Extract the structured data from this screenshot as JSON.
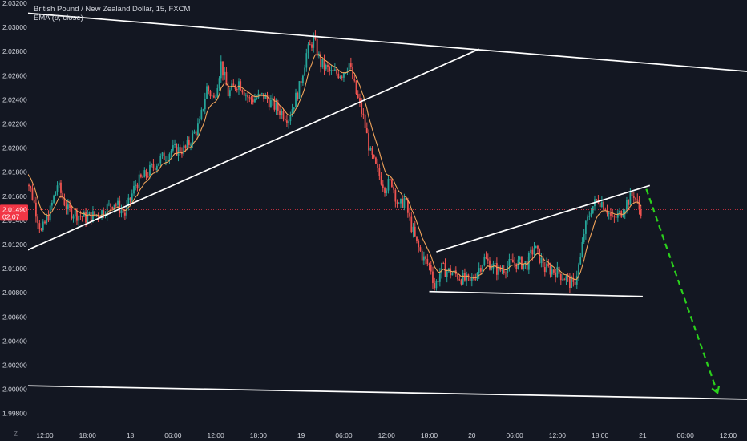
{
  "legend": {
    "symbol": "British Pound / New Zealand Dollar, 15, FXCM",
    "indicator": "EMA (9, close)"
  },
  "price_tag": {
    "price": "2.01490",
    "countdown": "02:07",
    "color": "#f23645"
  },
  "corner_label": "Z",
  "colors": {
    "background": "#131722",
    "up": "#26a69a",
    "down": "#ef5350",
    "ema": "#f0a35a",
    "trendline": "#ffffff",
    "forecast_arrow": "#2bd11c",
    "axis_text": "#d1d4dc"
  },
  "chart_data": {
    "type": "candlestick",
    "symbol": "GBPNZD",
    "timeframe": "15",
    "ylim": [
      1.9972,
      2.032
    ],
    "y_ticks": [
      "2.03200",
      "2.03000",
      "2.02800",
      "2.02600",
      "2.02400",
      "2.02200",
      "2.02000",
      "2.01800",
      "2.01600",
      "2.01400",
      "2.01200",
      "2.01000",
      "2.00800",
      "2.00600",
      "2.00400",
      "2.00200",
      "2.00000",
      "1.99800"
    ],
    "x_ticks": [
      "12:00",
      "18:00",
      "18",
      "06:00",
      "12:00",
      "18:00",
      "19",
      "06:00",
      "12:00",
      "18:00",
      "20",
      "06:00",
      "12:00",
      "18:00",
      "21",
      "06:00",
      "12:00"
    ],
    "x_tick_times": [
      "2025-11-17 12:00",
      "2025-11-17 18:00",
      "2025-11-18 00:00",
      "2025-11-18 06:00",
      "2025-11-18 12:00",
      "2025-11-18 18:00",
      "2025-11-19 00:00",
      "2025-11-19 06:00",
      "2025-11-19 12:00",
      "2025-11-19 18:00",
      "2025-11-20 00:00",
      "2025-11-20 06:00",
      "2025-11-20 12:00",
      "2025-11-20 18:00",
      "2025-11-21 00:00",
      "2025-11-21 06:00",
      "2025-11-21 12:00"
    ],
    "last_price": 2.0149,
    "close_path": [
      [
        "2025-11-17 09:00",
        2.0188
      ],
      [
        "2025-11-17 10:30",
        2.016
      ],
      [
        "2025-11-17 11:45",
        2.013
      ],
      [
        "2025-11-17 13:00",
        2.0148
      ],
      [
        "2025-11-17 14:00",
        2.017
      ],
      [
        "2025-11-17 15:30",
        2.0148
      ],
      [
        "2025-11-17 18:00",
        2.0142
      ],
      [
        "2025-11-17 20:00",
        2.0146
      ],
      [
        "2025-11-17 22:00",
        2.0155
      ],
      [
        "2025-11-17 23:30",
        2.0145
      ],
      [
        "2025-11-18 01:00",
        2.017
      ],
      [
        "2025-11-18 02:30",
        2.0178
      ],
      [
        "2025-11-18 04:00",
        2.0188
      ],
      [
        "2025-11-18 06:00",
        2.0198
      ],
      [
        "2025-11-18 08:00",
        2.0199
      ],
      [
        "2025-11-18 10:00",
        2.022
      ],
      [
        "2025-11-18 11:00",
        2.025
      ],
      [
        "2025-11-18 12:00",
        2.024
      ],
      [
        "2025-11-18 13:00",
        2.027
      ],
      [
        "2025-11-18 14:00",
        2.0245
      ],
      [
        "2025-11-18 15:30",
        2.0255
      ],
      [
        "2025-11-18 17:00",
        2.024
      ],
      [
        "2025-11-18 19:00",
        2.0243
      ],
      [
        "2025-11-18 21:00",
        2.0232
      ],
      [
        "2025-11-18 22:30",
        2.0225
      ],
      [
        "2025-11-19 00:00",
        2.025
      ],
      [
        "2025-11-19 01:00",
        2.0278
      ],
      [
        "2025-11-19 02:00",
        2.029
      ],
      [
        "2025-11-19 03:00",
        2.027
      ],
      [
        "2025-11-19 04:30",
        2.0262
      ],
      [
        "2025-11-19 06:00",
        2.0262
      ],
      [
        "2025-11-19 07:00",
        2.027
      ],
      [
        "2025-11-19 08:00",
        2.0245
      ],
      [
        "2025-11-19 09:00",
        2.0225
      ],
      [
        "2025-11-19 10:00",
        2.0195
      ],
      [
        "2025-11-19 11:00",
        2.018
      ],
      [
        "2025-11-19 12:00",
        2.0168
      ],
      [
        "2025-11-19 13:00",
        2.0172
      ],
      [
        "2025-11-19 14:00",
        2.015
      ],
      [
        "2025-11-19 14:45",
        2.0158
      ],
      [
        "2025-11-19 15:30",
        2.014
      ],
      [
        "2025-11-19 16:30",
        2.012
      ],
      [
        "2025-11-19 17:30",
        2.0108
      ],
      [
        "2025-11-19 18:30",
        2.01
      ],
      [
        "2025-11-19 19:00",
        2.0085
      ],
      [
        "2025-11-19 20:00",
        2.01
      ],
      [
        "2025-11-19 22:00",
        2.0095
      ],
      [
        "2025-11-20 00:00",
        2.0088
      ],
      [
        "2025-11-20 02:00",
        2.0108
      ],
      [
        "2025-11-20 04:00",
        2.0098
      ],
      [
        "2025-11-20 06:00",
        2.0105
      ],
      [
        "2025-11-20 08:00",
        2.0104
      ],
      [
        "2025-11-20 09:00",
        2.0118
      ],
      [
        "2025-11-20 10:30",
        2.01
      ],
      [
        "2025-11-20 12:00",
        2.0098
      ],
      [
        "2025-11-20 13:30",
        2.0092
      ],
      [
        "2025-11-20 14:30",
        2.0085
      ],
      [
        "2025-11-20 15:30",
        2.0108
      ],
      [
        "2025-11-20 16:00",
        2.013
      ],
      [
        "2025-11-20 17:00",
        2.015
      ],
      [
        "2025-11-20 18:00",
        2.0158
      ],
      [
        "2025-11-20 19:00",
        2.0152
      ],
      [
        "2025-11-20 20:00",
        2.014
      ],
      [
        "2025-11-20 21:00",
        2.0145
      ],
      [
        "2025-11-20 22:00",
        2.0155
      ],
      [
        "2025-11-20 23:00",
        2.0162
      ],
      [
        "2025-11-20 23:45",
        2.0149
      ]
    ],
    "trendlines": [
      {
        "from": [
          "2025-11-17 09:00",
          2.0312
        ],
        "to": [
          "2025-11-21 22:00",
          2.026
        ]
      },
      {
        "from": [
          "2025-11-17 09:00",
          2.0114
        ],
        "to": [
          "2025-11-20 01:00",
          2.0282
        ]
      },
      {
        "from": [
          "2025-11-17 09:00",
          2.0003
        ],
        "to": [
          "2025-11-21 22:00",
          1.9991
        ]
      },
      {
        "from": [
          "2025-11-19 19:00",
          2.0114
        ],
        "to": [
          "2025-11-21 01:00",
          2.0169
        ]
      },
      {
        "from": [
          "2025-11-19 18:00",
          2.0081
        ],
        "to": [
          "2025-11-21 00:00",
          2.0077
        ]
      }
    ],
    "forecast_arrow": {
      "from": [
        "2025-11-21 00:30",
        2.0166
      ],
      "to": [
        "2025-11-21 10:30",
        1.9997
      ]
    }
  }
}
